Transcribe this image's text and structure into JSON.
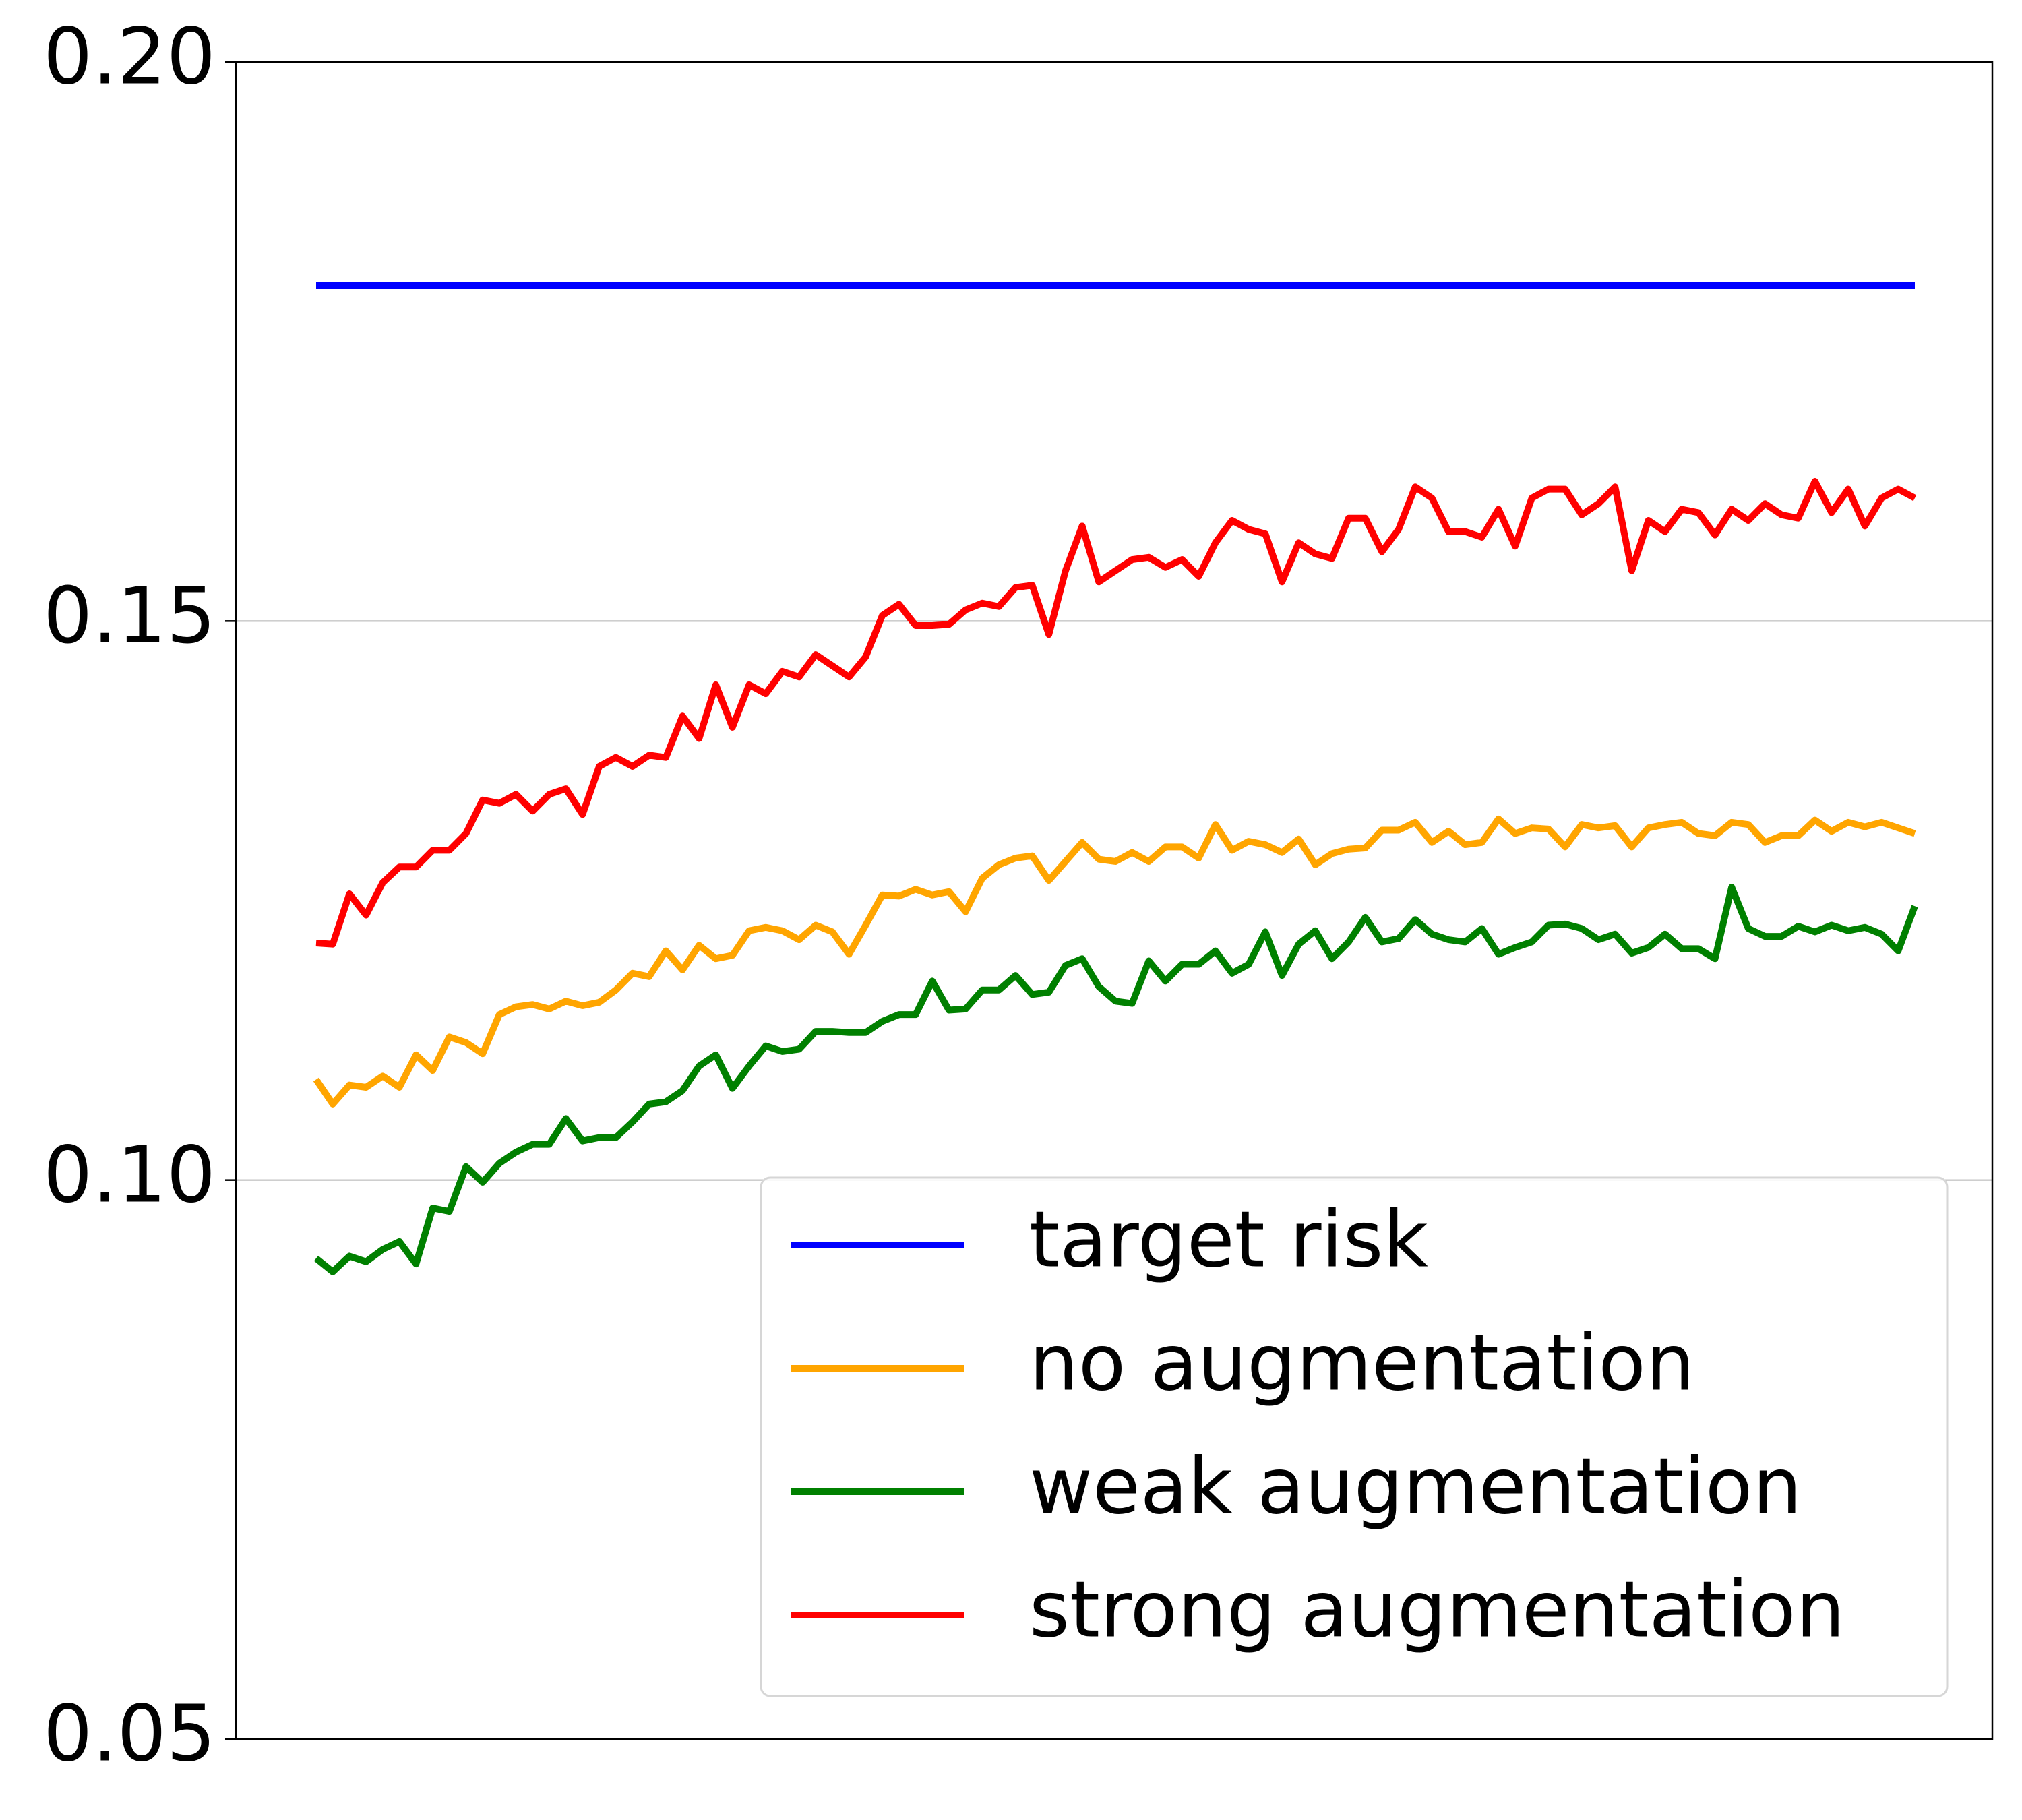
{
  "chart_data": {
    "type": "line",
    "ylim": [
      0.05,
      0.2
    ],
    "yticks": [
      0.05,
      {
        "value": 0.1,
        "label": "0.10"
      },
      0.15,
      {
        "value": 0.2,
        "label": "0.20"
      }
    ],
    "grid": true,
    "legend": "lower right",
    "series": [
      {
        "name": "target risk",
        "color": "#0000ff",
        "values": [
          0.18,
          0.18,
          0.18,
          0.18,
          0.18,
          0.18,
          0.18,
          0.18,
          0.18,
          0.18,
          0.18,
          0.18,
          0.18,
          0.18,
          0.18,
          0.18,
          0.18,
          0.18,
          0.18,
          0.18,
          0.18,
          0.18,
          0.18,
          0.18,
          0.18,
          0.18,
          0.18,
          0.18,
          0.18,
          0.18,
          0.18,
          0.18,
          0.18,
          0.18,
          0.18,
          0.18,
          0.18,
          0.18,
          0.18,
          0.18,
          0.18,
          0.18,
          0.18,
          0.18,
          0.18,
          0.18,
          0.18,
          0.18,
          0.18,
          0.18,
          0.18,
          0.18,
          0.18,
          0.18,
          0.18,
          0.18,
          0.18,
          0.18,
          0.18,
          0.18,
          0.18,
          0.18,
          0.18,
          0.18,
          0.18,
          0.18,
          0.18,
          0.18,
          0.18,
          0.18,
          0.18,
          0.18,
          0.18,
          0.18,
          0.18,
          0.18,
          0.18,
          0.18,
          0.18,
          0.18,
          0.18,
          0.18,
          0.18,
          0.18,
          0.18,
          0.18,
          0.18,
          0.18,
          0.18,
          0.18,
          0.18,
          0.18,
          0.18,
          0.18,
          0.18,
          0.18,
          0.18
        ]
      },
      {
        "name": "no augmentation",
        "color": "#ffa500",
        "values": [
          0.109,
          0.1068,
          0.1085,
          0.1083,
          0.1093,
          0.1083,
          0.1112,
          0.1098,
          0.1128,
          0.1123,
          0.1113,
          0.1148,
          0.1155,
          0.1157,
          0.1153,
          0.116,
          0.1156,
          0.1159,
          0.117,
          0.1185,
          0.1182,
          0.1205,
          0.1188,
          0.121,
          0.1198,
          0.1201,
          0.1223,
          0.1226,
          0.1223,
          0.1215,
          0.1228,
          0.1222,
          0.1202,
          0.1228,
          0.1255,
          0.1254,
          0.126,
          0.1255,
          0.1258,
          0.124,
          0.127,
          0.1282,
          0.1288,
          0.129,
          0.1268,
          0.1285,
          0.1302,
          0.1287,
          0.1285,
          0.1293,
          0.1285,
          0.1298,
          0.1298,
          0.1288,
          0.1318,
          0.1295,
          0.1303,
          0.13,
          0.1293,
          0.1305,
          0.1282,
          0.1292,
          0.1296,
          0.1297,
          0.1313,
          0.1313,
          0.132,
          0.1302,
          0.1312,
          0.13,
          0.1302,
          0.1323,
          0.131,
          0.1315,
          0.1314,
          0.1298,
          0.1318,
          0.1315,
          0.1317,
          0.1298,
          0.1315,
          0.1318,
          0.132,
          0.131,
          0.1308,
          0.132,
          0.1318,
          0.1302,
          0.1308,
          0.1308,
          0.1322,
          0.1312,
          0.132,
          0.1316,
          0.132,
          0.1315,
          0.131
        ]
      },
      {
        "name": "weak augmentation",
        "color": "#008000",
        "values": [
          0.093,
          0.0918,
          0.0932,
          0.0927,
          0.0938,
          0.0945,
          0.0925,
          0.0975,
          0.0972,
          0.1012,
          0.0998,
          0.1015,
          0.1025,
          0.1032,
          0.1032,
          0.1055,
          0.1035,
          0.1038,
          0.1038,
          0.1052,
          0.1068,
          0.107,
          0.108,
          0.1102,
          0.1112,
          0.1082,
          0.1102,
          0.112,
          0.1115,
          0.1117,
          0.1133,
          0.1133,
          0.1132,
          0.1132,
          0.1142,
          0.1148,
          0.1148,
          0.1178,
          0.1152,
          0.1153,
          0.117,
          0.117,
          0.1183,
          0.1166,
          0.1168,
          0.1192,
          0.1198,
          0.1173,
          0.116,
          0.1158,
          0.1196,
          0.1178,
          0.1193,
          0.1193,
          0.1205,
          0.1185,
          0.1193,
          0.1222,
          0.1183,
          0.1211,
          0.1223,
          0.1198,
          0.1213,
          0.1235,
          0.1213,
          0.1216,
          0.1233,
          0.122,
          0.1215,
          0.1213,
          0.1225,
          0.1202,
          0.1208,
          0.1213,
          0.1228,
          0.1229,
          0.1225,
          0.1215,
          0.122,
          0.1203,
          0.1208,
          0.122,
          0.1207,
          0.1207,
          0.1198,
          0.1262,
          0.1225,
          0.1218,
          0.1218,
          0.1227,
          0.1222,
          0.1228,
          0.1223,
          0.1226,
          0.122,
          0.1205,
          0.1245
        ]
      },
      {
        "name": "strong augmentation",
        "color": "#ff0000",
        "values": [
          0.1212,
          0.1211,
          0.1256,
          0.1237,
          0.1266,
          0.128,
          0.128,
          0.1295,
          0.1295,
          0.131,
          0.134,
          0.1337,
          0.1345,
          0.133,
          0.1345,
          0.135,
          0.1327,
          0.137,
          0.1378,
          0.137,
          0.138,
          0.1378,
          0.1415,
          0.1395,
          0.1443,
          0.1405,
          0.1443,
          0.1435,
          0.1455,
          0.145,
          0.147,
          0.146,
          0.145,
          0.1468,
          0.1505,
          0.1515,
          0.1496,
          0.1496,
          0.1497,
          0.151,
          0.1516,
          0.1513,
          0.153,
          0.1532,
          0.1488,
          0.1545,
          0.1585,
          0.1535,
          0.1545,
          0.1555,
          0.1557,
          0.1548,
          0.1555,
          0.154,
          0.157,
          0.159,
          0.1582,
          0.1578,
          0.1535,
          0.157,
          0.156,
          0.1556,
          0.1592,
          0.1592,
          0.1562,
          0.1582,
          0.162,
          0.161,
          0.158,
          0.158,
          0.1575,
          0.16,
          0.1567,
          0.161,
          0.1618,
          0.1618,
          0.1595,
          0.1605,
          0.162,
          0.1545,
          0.159,
          0.158,
          0.16,
          0.1597,
          0.1577,
          0.16,
          0.159,
          0.1605,
          0.1595,
          0.1592,
          0.1625,
          0.1597,
          0.1618,
          0.1585,
          0.161,
          0.1618,
          0.161
        ]
      }
    ]
  }
}
